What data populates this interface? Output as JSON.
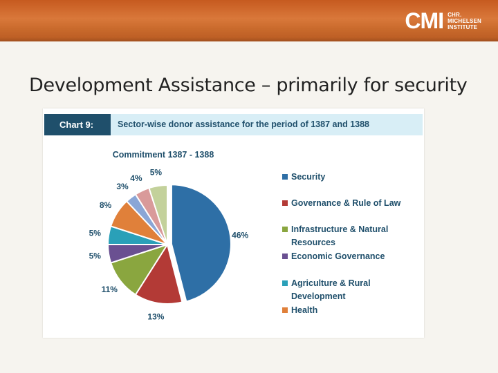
{
  "header": {
    "logo_text": "CMI",
    "logo_sub_line1": "CHR.",
    "logo_sub_line2": "MICHELSEN",
    "logo_sub_line3": "INSTITUTE"
  },
  "slide": {
    "title": "Development Assistance – primarily for security"
  },
  "chart_card": {
    "chart_number": "Chart 9:",
    "chart_heading": "Sector-wise donor assistance for the period of 1387 and 1388"
  },
  "chart_data": {
    "type": "pie",
    "title": "Commitment 1387 - 1388",
    "slices": [
      {
        "label": "Security",
        "value": 46,
        "text": "46%",
        "color": "#2e6fa6"
      },
      {
        "label": "Governance & Rule of Law",
        "value": 13,
        "text": "13%",
        "color": "#b33a36"
      },
      {
        "label": "Infrastructure & Natural Resources",
        "value": 11,
        "text": "11%",
        "color": "#8aa63f"
      },
      {
        "label": "Economic Governance",
        "value": 5,
        "text": "5%",
        "color": "#6a5091"
      },
      {
        "label": "Agriculture & Rural Development",
        "value": 5,
        "text": "5%",
        "color": "#2aa0b8"
      },
      {
        "label": "Health",
        "value": 8,
        "text": "8%",
        "color": "#e0803a"
      },
      {
        "label": "",
        "value": 3,
        "text": "3%",
        "color": "#8aa6d6"
      },
      {
        "label": "",
        "value": 4,
        "text": "4%",
        "color": "#d99a9a"
      },
      {
        "label": "",
        "value": 5,
        "text": "5%",
        "color": "#c3d19b"
      }
    ],
    "legend_position": "right"
  }
}
